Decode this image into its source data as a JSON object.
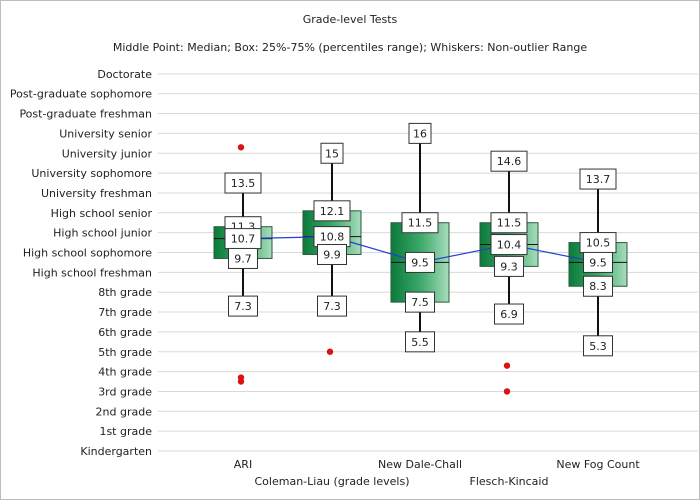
{
  "chart_data": {
    "type": "boxplot",
    "title": "Grade-level Tests",
    "subtitle": "Middle Point: Median; Box: 25%-75% (percentiles range); Whiskers: Non-outlier Range",
    "y_categories": [
      "Kindergarten",
      "1st grade",
      "2nd grade",
      "3rd grade",
      "4th grade",
      "5th grade",
      "6th grade",
      "7th grade",
      "8th grade",
      "High school freshman",
      "High school sophomore",
      "High school junior",
      "High school senior",
      "University freshman",
      "University sophomore",
      "University junior",
      "University senior",
      "Post-graduate freshman",
      "Post-graduate sophomore",
      "Doctorate"
    ],
    "ylim": [
      0,
      19
    ],
    "grid": true,
    "median_line_color": "#1f3fd1",
    "outlier_color": "#dd1111",
    "box_color_dark": "#0b7a3a",
    "box_color_light": "#a8dcbc",
    "series": [
      {
        "name": "ARI",
        "whisker_low": 7.3,
        "q1": 9.7,
        "median": 10.7,
        "q3": 11.3,
        "whisker_high": 13.5,
        "outliers": [
          15.3,
          3.7,
          3.5
        ],
        "labels": {
          "whisker_high": "13.5",
          "q3": "11.3",
          "median": "10.7",
          "q1": "9.7",
          "whisker_low": "7.3"
        }
      },
      {
        "name": "Coleman-Liau (grade levels)",
        "whisker_low": 7.3,
        "q1": 9.9,
        "median": 10.8,
        "q3": 12.1,
        "whisker_high": 15,
        "outliers": [
          5.0
        ],
        "labels": {
          "whisker_high": "15",
          "q3": "12.1",
          "median": "10.8",
          "q1": "9.9",
          "whisker_low": "7.3"
        }
      },
      {
        "name": "New Dale-Chall",
        "whisker_low": 5.5,
        "q1": 7.5,
        "median": 9.5,
        "q3": 11.5,
        "whisker_high": 16,
        "outliers": [],
        "labels": {
          "whisker_high": "16",
          "q3": "11.5",
          "median": "9.5",
          "q1": "7.5",
          "whisker_low": "5.5"
        }
      },
      {
        "name": "Flesch-Kincaid",
        "whisker_low": 6.9,
        "q1": 9.3,
        "median": 10.4,
        "q3": 11.5,
        "whisker_high": 14.6,
        "outliers": [
          4.3,
          3.0
        ],
        "labels": {
          "whisker_high": "14.6",
          "q3": "11.5",
          "median": "10.4",
          "q1": "9.3",
          "whisker_low": "6.9"
        }
      },
      {
        "name": "New Fog Count",
        "whisker_low": 5.3,
        "q1": 8.3,
        "median": 9.5,
        "q3": 10.5,
        "whisker_high": 13.7,
        "outliers": [],
        "labels": {
          "whisker_high": "13.7",
          "q3": "10.5",
          "median": "9.5",
          "q1": "8.3",
          "whisker_low": "5.3"
        }
      }
    ]
  }
}
